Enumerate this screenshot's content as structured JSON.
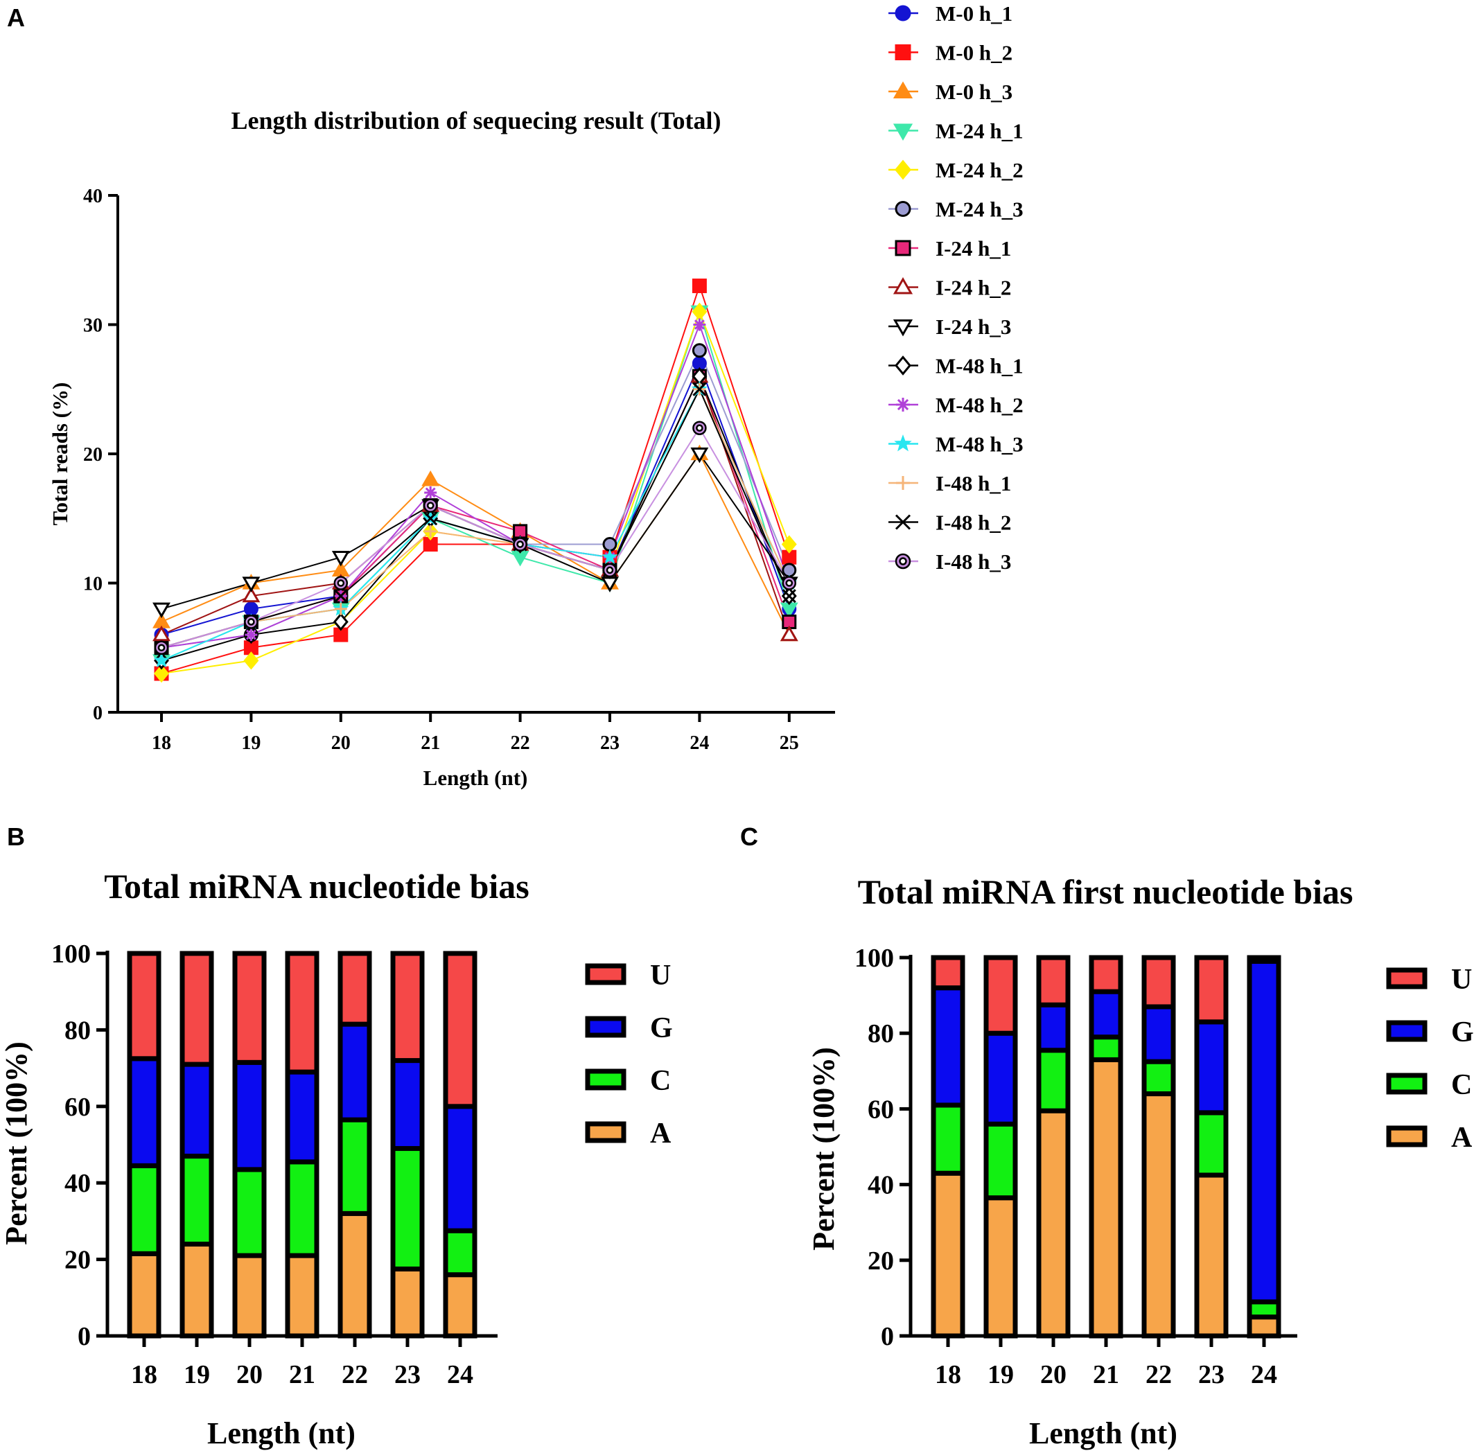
{
  "panels": {
    "a": "A",
    "b": "B",
    "c": "C"
  },
  "chart_data": [
    {
      "id": "a",
      "type": "line",
      "title": "Length distribution of sequecing result (Total)",
      "xlabel": "Length (nt)",
      "ylabel": "Total reads (%)",
      "categories": [
        "18",
        "19",
        "20",
        "21",
        "22",
        "23",
        "24",
        "25"
      ],
      "ylim": [
        0,
        40
      ],
      "yticks": [
        0,
        10,
        20,
        30,
        40
      ],
      "legend_position": "right",
      "series": [
        {
          "name": "M-0 h_1",
          "color": "#1414d2",
          "marker": "circle",
          "filled": true,
          "values": [
            6,
            8,
            9,
            16,
            13,
            11,
            27,
            8
          ]
        },
        {
          "name": "M-0 h_2",
          "color": "#ff1010",
          "marker": "square",
          "filled": true,
          "values": [
            3,
            5,
            6,
            13,
            13,
            12,
            33,
            12
          ]
        },
        {
          "name": "M-0 h_3",
          "color": "#ff8c14",
          "marker": "triangle-up",
          "filled": true,
          "values": [
            7,
            10,
            11,
            18,
            14,
            10,
            20,
            6
          ]
        },
        {
          "name": "M-24 h_1",
          "color": "#3ee8aa",
          "marker": "triangle-down",
          "filled": true,
          "values": [
            4,
            7,
            8,
            15,
            12,
            10,
            31,
            8
          ]
        },
        {
          "name": "M-24 h_2",
          "color": "#ffee00",
          "marker": "diamond",
          "filled": true,
          "values": [
            3,
            4,
            7,
            14,
            13,
            11,
            31,
            13
          ]
        },
        {
          "name": "M-24 h_3",
          "color": "#9c9cd2",
          "marker": "circle",
          "filled": true,
          "outline": "#000000",
          "values": [
            5,
            6,
            9,
            16,
            13,
            13,
            28,
            11
          ]
        },
        {
          "name": "I-24 h_1",
          "color": "#e8287a",
          "marker": "square",
          "filled": true,
          "outline": "#000000",
          "values": [
            5,
            7,
            9,
            16,
            14,
            11,
            26,
            7
          ]
        },
        {
          "name": "I-24 h_2",
          "color": "#a01414",
          "marker": "triangle-up",
          "filled": false,
          "values": [
            6,
            9,
            10,
            16,
            13,
            11,
            26,
            6
          ]
        },
        {
          "name": "I-24 h_3",
          "color": "#000000",
          "marker": "triangle-down",
          "filled": false,
          "values": [
            8,
            10,
            12,
            16,
            13,
            10,
            20,
            10
          ]
        },
        {
          "name": "M-48 h_1",
          "color": "#000000",
          "marker": "diamond",
          "filled": false,
          "values": [
            4,
            6,
            7,
            15,
            13,
            11,
            26,
            9
          ]
        },
        {
          "name": "M-48 h_2",
          "color": "#b040d8",
          "marker": "asterisk",
          "filled": false,
          "values": [
            5,
            6,
            9,
            17,
            13,
            12,
            30,
            10
          ]
        },
        {
          "name": "M-48 h_3",
          "color": "#28e6f0",
          "marker": "star",
          "filled": true,
          "values": [
            4,
            7,
            8,
            15,
            13,
            12,
            25,
            10
          ]
        },
        {
          "name": "I-48 h_1",
          "color": "#f5b478",
          "marker": "plus",
          "filled": false,
          "values": [
            5,
            7,
            8,
            14,
            13,
            11,
            25,
            10
          ]
        },
        {
          "name": "I-48 h_2",
          "color": "#000000",
          "marker": "x",
          "filled": false,
          "values": [
            5,
            7,
            9,
            15,
            13,
            11,
            25,
            9
          ]
        },
        {
          "name": "I-48 h_3",
          "color": "#c890e0",
          "marker": "ring",
          "filled": false,
          "values": [
            5,
            7,
            10,
            16,
            13,
            11,
            22,
            10
          ]
        }
      ]
    },
    {
      "id": "b",
      "type": "bar",
      "stacked": true,
      "title": "Total miRNA nucleotide bias",
      "xlabel": "Length (nt)",
      "ylabel": "Percent (100%)",
      "categories": [
        "18",
        "19",
        "20",
        "21",
        "22",
        "23",
        "24"
      ],
      "ylim": [
        0,
        100
      ],
      "yticks": [
        0,
        20,
        40,
        60,
        80,
        100
      ],
      "legend_position": "right",
      "series": [
        {
          "name": "A",
          "color": "#f7a54a",
          "values": [
            21.5,
            24,
            21,
            21,
            32,
            17.5,
            16
          ]
        },
        {
          "name": "C",
          "color": "#12f012",
          "values": [
            23,
            23,
            22.5,
            24.5,
            24.5,
            31.5,
            11.5
          ]
        },
        {
          "name": "G",
          "color": "#0a0af0",
          "values": [
            28,
            24,
            28,
            23.5,
            25,
            23,
            32.5
          ]
        },
        {
          "name": "U",
          "color": "#f54848",
          "values": [
            27.5,
            29,
            28.5,
            31,
            18.5,
            28,
            40
          ]
        }
      ]
    },
    {
      "id": "c",
      "type": "bar",
      "stacked": true,
      "title": "Total miRNA first nucleotide bias",
      "xlabel": "Length (nt)",
      "ylabel": "Percent (100%)",
      "categories": [
        "18",
        "19",
        "20",
        "21",
        "22",
        "23",
        "24"
      ],
      "ylim": [
        0,
        100
      ],
      "yticks": [
        0,
        20,
        40,
        60,
        80,
        100
      ],
      "legend_position": "right",
      "series": [
        {
          "name": "A",
          "color": "#f7a54a",
          "values": [
            43,
            36.5,
            59.5,
            73,
            64,
            42.5,
            5
          ]
        },
        {
          "name": "C",
          "color": "#12f012",
          "values": [
            18,
            19.5,
            16,
            6,
            8.5,
            16.5,
            4
          ]
        },
        {
          "name": "G",
          "color": "#0a0af0",
          "values": [
            31,
            24,
            12,
            12,
            14.5,
            24,
            90
          ]
        },
        {
          "name": "U",
          "color": "#f54848",
          "values": [
            8,
            20,
            12.5,
            9,
            13,
            17,
            1
          ]
        }
      ]
    }
  ]
}
